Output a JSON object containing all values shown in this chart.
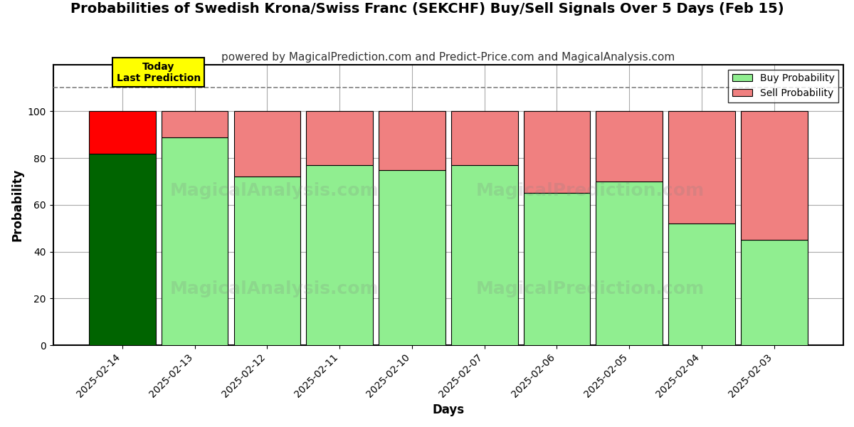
{
  "title": "Probabilities of Swedish Krona/Swiss Franc (SEKCHF) Buy/Sell Signals Over 5 Days (Feb 15)",
  "subtitle": "powered by MagicalPrediction.com and Predict-Price.com and MagicalAnalysis.com",
  "xlabel": "Days",
  "ylabel": "Probability",
  "categories": [
    "2025-02-14",
    "2025-02-13",
    "2025-02-12",
    "2025-02-11",
    "2025-02-10",
    "2025-02-07",
    "2025-02-06",
    "2025-02-05",
    "2025-02-04",
    "2025-02-03"
  ],
  "buy_values": [
    82,
    89,
    72,
    77,
    75,
    77,
    65,
    70,
    52,
    45
  ],
  "sell_values": [
    18,
    11,
    28,
    23,
    25,
    23,
    35,
    30,
    48,
    55
  ],
  "today_bar_index": 0,
  "today_buy_color": "#006400",
  "today_sell_color": "#FF0000",
  "other_buy_color": "#90EE90",
  "other_sell_color": "#F08080",
  "bar_edge_color": "#000000",
  "today_label_bg": "#FFFF00",
  "today_label_text": "Today\nLast Prediction",
  "legend_buy_label": "Buy Probability",
  "legend_sell_label": "Sell Probability",
  "ylim": [
    0,
    120
  ],
  "yticks": [
    0,
    20,
    40,
    60,
    80,
    100
  ],
  "dashed_line_y": 110,
  "title_fontsize": 14,
  "subtitle_fontsize": 11,
  "axis_label_fontsize": 12,
  "tick_fontsize": 10,
  "background_color": "#ffffff",
  "grid_color": "#aaaaaa",
  "bar_width": 0.92
}
